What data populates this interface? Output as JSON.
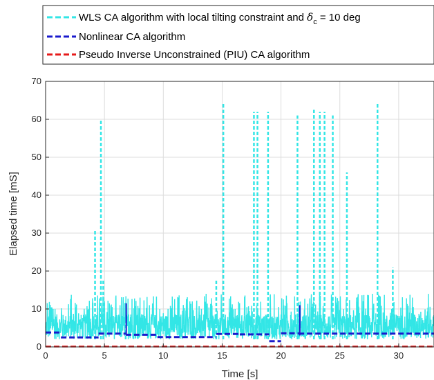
{
  "chart_data": {
    "type": "line",
    "xlabel": "Time [s]",
    "ylabel": "Elapsed time [mS]",
    "xlim": [
      0,
      33
    ],
    "ylim": [
      0,
      70
    ],
    "xticks": [
      0,
      5,
      10,
      15,
      20,
      25,
      30
    ],
    "yticks": [
      0,
      10,
      20,
      30,
      40,
      50,
      60,
      70
    ],
    "grid": true,
    "legend_position": "top (outside plot)",
    "series": [
      {
        "name_prefix": "WLS CA algorithm with local tilting constraint and",
        "name_symbol": "δ",
        "name_subscript": "c",
        "name_suffix": " = 10 deg",
        "color": "#33e6e6",
        "style": "dashed",
        "baseline_range": [
          2,
          14
        ],
        "spikes": [
          {
            "x": 4.2,
            "y": 31
          },
          {
            "x": 4.7,
            "y": 60
          },
          {
            "x": 4.9,
            "y": 18
          },
          {
            "x": 6.8,
            "y": 12
          },
          {
            "x": 14.5,
            "y": 18
          },
          {
            "x": 15.1,
            "y": 64
          },
          {
            "x": 17.7,
            "y": 62
          },
          {
            "x": 18.0,
            "y": 62
          },
          {
            "x": 18.9,
            "y": 62
          },
          {
            "x": 21.4,
            "y": 61
          },
          {
            "x": 22.8,
            "y": 63
          },
          {
            "x": 23.3,
            "y": 62
          },
          {
            "x": 23.7,
            "y": 62
          },
          {
            "x": 24.4,
            "y": 61
          },
          {
            "x": 25.6,
            "y": 46
          },
          {
            "x": 28.2,
            "y": 64
          },
          {
            "x": 29.5,
            "y": 21
          }
        ]
      },
      {
        "name": "Nonlinear CA algorithm",
        "color": "#1a1acc",
        "style": "dashed",
        "segments": [
          {
            "x": [
              0,
              1.3
            ],
            "y": 3.8
          },
          {
            "x": [
              1.3,
              4.5
            ],
            "y": 2.5
          },
          {
            "x": [
              4.5,
              6.8
            ],
            "y": 3.5
          },
          {
            "x": [
              6.8,
              9.5
            ],
            "y": 3.2
          },
          {
            "x": [
              9.5,
              14.5
            ],
            "y": 2.6
          },
          {
            "x": [
              14.5,
              16.5
            ],
            "y": 3.4
          },
          {
            "x": [
              16.5,
              19.0
            ],
            "y": 3.3
          },
          {
            "x": [
              19.0,
              20.0
            ],
            "y": 1.5
          },
          {
            "x": [
              20.0,
              21.5
            ],
            "y": 3.6
          },
          {
            "x": [
              21.5,
              33
            ],
            "y": 3.5
          }
        ],
        "spikes": [
          {
            "x": 6.85,
            "y": 11.5
          },
          {
            "x": 21.6,
            "y": 11
          }
        ]
      },
      {
        "name": "Pseudo Inverse Unconstrained (PIU) CA algorithm",
        "color": "#e61a1a",
        "style": "dashed",
        "constant": 0.1
      }
    ]
  }
}
